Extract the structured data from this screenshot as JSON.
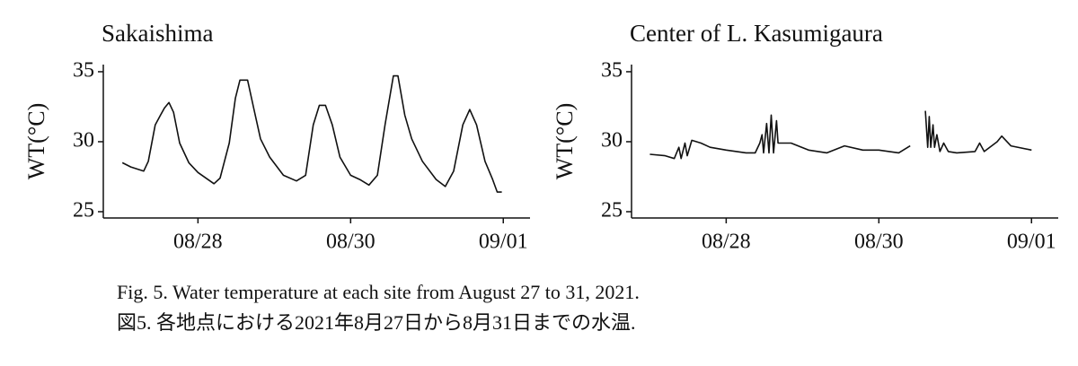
{
  "chart_data": [
    {
      "type": "line",
      "title": "Sakaishima",
      "y_label": "WT(°C)",
      "x": [
        27.01,
        27.12,
        27.29,
        27.35,
        27.44,
        27.51,
        27.56,
        27.62,
        27.68,
        27.76,
        27.88,
        28.0,
        28.21,
        28.29,
        28.41,
        28.49,
        28.55,
        28.65,
        28.73,
        28.82,
        28.94,
        29.12,
        29.29,
        29.41,
        29.51,
        29.59,
        29.67,
        29.76,
        29.86,
        30.0,
        30.12,
        30.24,
        30.35,
        30.45,
        30.56,
        30.62,
        30.71,
        30.8,
        30.94,
        31.12,
        31.24,
        31.35,
        31.47,
        31.56,
        31.65,
        31.76,
        31.86,
        31.92,
        31.98
      ],
      "series": [
        {
          "name": "Sakaishima",
          "color": "#111111",
          "values": [
            28.5,
            28.2,
            27.9,
            28.6,
            31.2,
            31.9,
            32.4,
            32.8,
            32.1,
            29.9,
            28.5,
            27.8,
            27.0,
            27.4,
            29.9,
            33.1,
            34.4,
            34.4,
            32.4,
            30.2,
            28.9,
            27.6,
            27.2,
            27.6,
            31.2,
            32.6,
            32.6,
            31.2,
            28.9,
            27.6,
            27.3,
            26.9,
            27.6,
            31.2,
            34.7,
            34.7,
            31.9,
            30.2,
            28.6,
            27.3,
            26.8,
            27.9,
            31.2,
            32.3,
            31.2,
            28.6,
            27.3,
            26.4,
            26.4
          ]
        }
      ],
      "xlim": [
        26.76,
        32.35
      ],
      "xticks": [
        {
          "value": 28,
          "label": "08/28"
        },
        {
          "value": 30,
          "label": "08/30"
        },
        {
          "value": 32,
          "label": "09/01"
        }
      ],
      "ylim": [
        24.55,
        35.51
      ],
      "yticks": [
        25,
        30,
        35
      ],
      "grid": false
    },
    {
      "type": "line",
      "title": "Center of L. Kasumigaura",
      "y_label": "WT(°C)",
      "x": [
        27.0,
        27.2,
        27.32,
        27.38,
        27.41,
        27.46,
        27.49,
        27.55,
        27.67,
        27.79,
        28.0,
        28.26,
        28.38,
        28.44,
        28.47,
        28.49,
        28.53,
        28.56,
        28.59,
        28.62,
        28.66,
        28.68,
        28.85,
        29.08,
        29.32,
        29.55,
        29.79,
        30.0,
        30.26,
        30.41,
        30.5,
        30.61,
        30.64,
        30.66,
        30.68,
        30.71,
        30.73,
        30.76,
        30.8,
        30.85,
        30.91,
        31.02,
        31.26,
        31.32,
        31.38,
        31.55,
        31.61,
        31.73,
        32.0
      ],
      "series": [
        {
          "name": "Center of L. Kasumigaura",
          "color": "#111111",
          "values": [
            29.1,
            29.0,
            28.8,
            29.6,
            28.8,
            29.9,
            29.0,
            30.1,
            29.9,
            29.6,
            29.4,
            29.2,
            29.2,
            29.9,
            30.5,
            29.2,
            31.3,
            29.2,
            31.9,
            29.2,
            31.5,
            29.9,
            29.9,
            29.4,
            29.2,
            29.7,
            29.4,
            29.4,
            29.2,
            29.7,
            null,
            32.2,
            29.6,
            31.8,
            29.6,
            31.2,
            29.6,
            30.5,
            29.3,
            29.9,
            29.3,
            29.2,
            29.3,
            29.9,
            29.3,
            30.0,
            30.4,
            29.7,
            29.4
          ]
        }
      ],
      "xlim": [
        26.76,
        32.35
      ],
      "xticks": [
        {
          "value": 28,
          "label": "08/28"
        },
        {
          "value": 30,
          "label": "08/30"
        },
        {
          "value": 32,
          "label": "09/01"
        }
      ],
      "ylim": [
        24.55,
        35.51
      ],
      "yticks": [
        25,
        30,
        35
      ],
      "grid": false
    }
  ],
  "caption": [
    "Fig. 5. Water temperature at each site from August 27 to 31, 2021.",
    "図5. 各地点における2021年8月27日から8月31日までの水温."
  ]
}
